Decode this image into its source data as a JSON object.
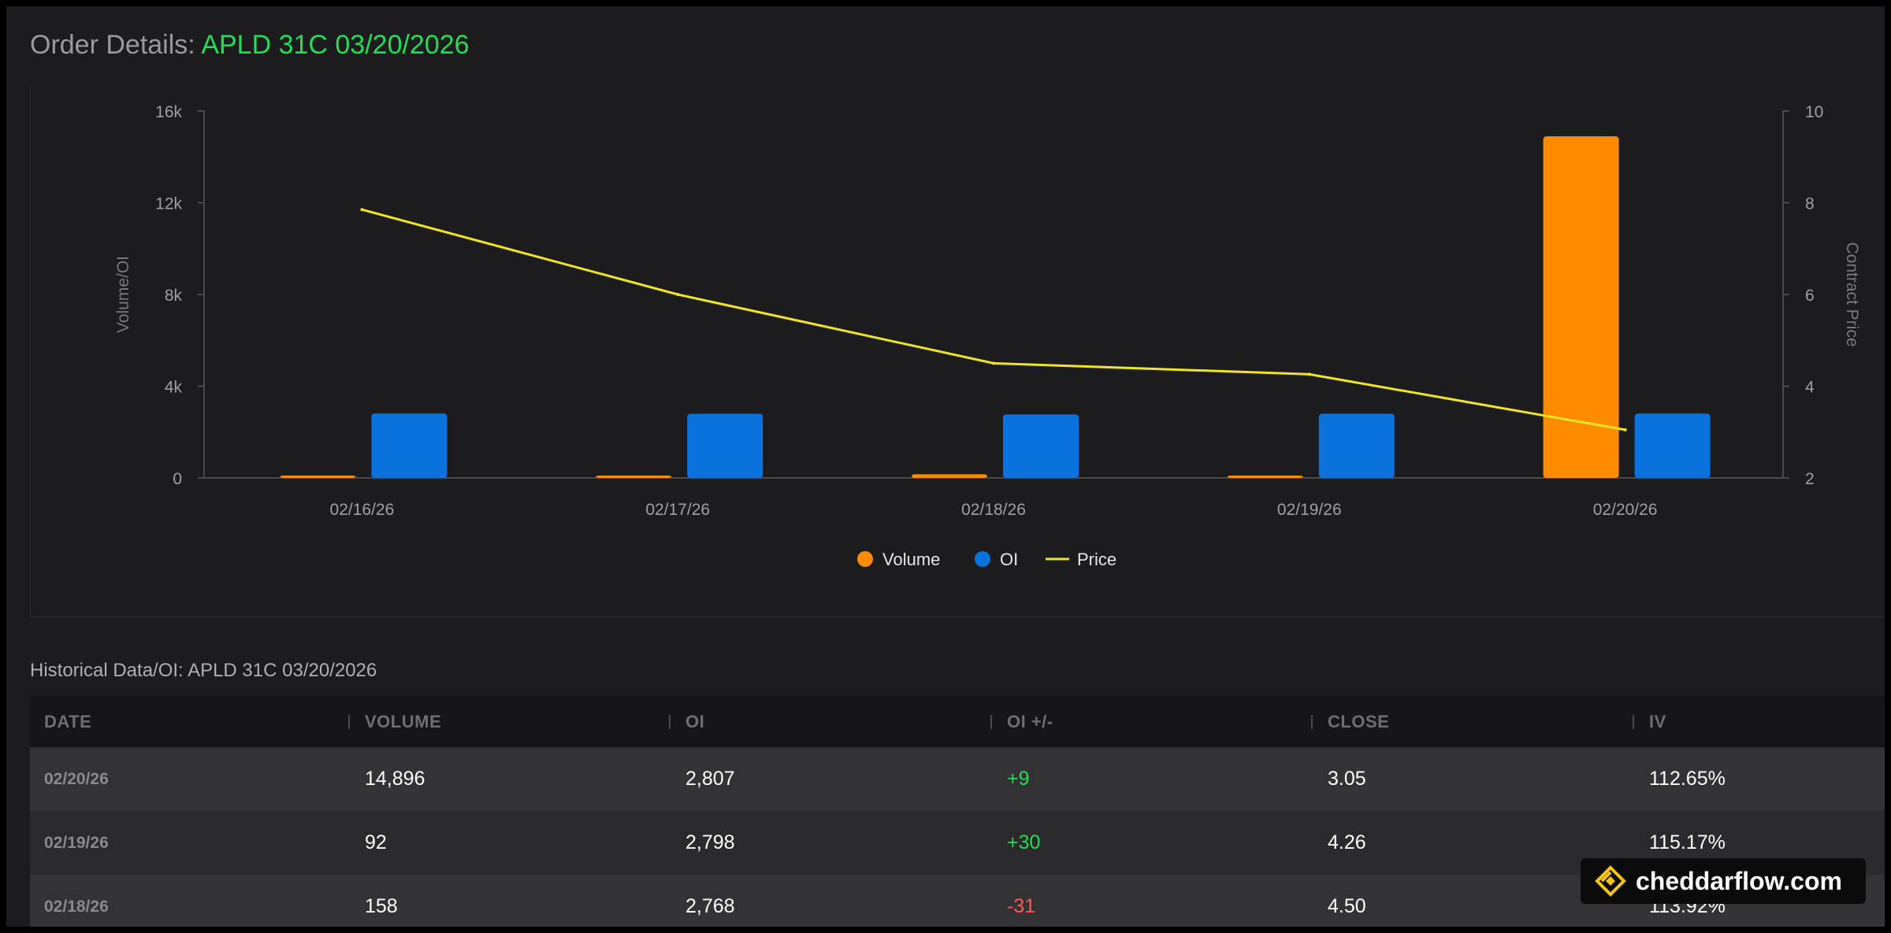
{
  "header": {
    "prefix": "Order Details: ",
    "contract": "APLD 31C 03/20/2026"
  },
  "chart_data": {
    "type": "bar",
    "categories": [
      "02/16/26",
      "02/17/26",
      "02/18/26",
      "02/19/26",
      "02/20/26"
    ],
    "series": [
      {
        "name": "Volume",
        "type": "bar",
        "axis": "left",
        "color": "#ff8c00",
        "values": [
          40,
          85,
          158,
          92,
          14896
        ]
      },
      {
        "name": "OI",
        "type": "bar",
        "axis": "left",
        "color": "#0a72dd",
        "values": [
          2807,
          2800,
          2768,
          2798,
          2807
        ]
      },
      {
        "name": "Price",
        "type": "line",
        "axis": "right",
        "color": "#f0e520",
        "values": [
          7.85,
          6.0,
          4.5,
          4.26,
          3.05
        ]
      }
    ],
    "ylabel": "Volume/OI",
    "y2label": "Contract Price",
    "ylim": [
      0,
      16000
    ],
    "y2lim": [
      2,
      10
    ],
    "yticks": [
      "0",
      "4k",
      "8k",
      "12k",
      "16k"
    ],
    "y2ticks": [
      "2",
      "4",
      "6",
      "8",
      "10"
    ],
    "legend": "bottom-center",
    "grid": false
  },
  "history": {
    "title": "Historical Data/OI: APLD 31C 03/20/2026",
    "columns": [
      "DATE",
      "VOLUME",
      "OI",
      "OI +/-",
      "CLOSE",
      "IV"
    ],
    "rows": [
      {
        "date": "02/20/26",
        "volume": "14,896",
        "oi": "2,807",
        "oi_change": "+9",
        "close": "3.05",
        "iv": "112.65%"
      },
      {
        "date": "02/19/26",
        "volume": "92",
        "oi": "2,798",
        "oi_change": "+30",
        "close": "4.26",
        "iv": "115.17%"
      },
      {
        "date": "02/18/26",
        "volume": "158",
        "oi": "2,768",
        "oi_change": "-31",
        "close": "4.50",
        "iv": "113.92%"
      }
    ]
  },
  "watermark": {
    "text": "cheddarflow.com",
    "icon": "cheddarflow-logo-icon"
  },
  "colors": {
    "accent_green": "#22dd55",
    "negative_red": "#ff5a5a",
    "volume_orange": "#ff8c00",
    "oi_blue": "#0a72dd",
    "price_yellow": "#f0e520"
  }
}
